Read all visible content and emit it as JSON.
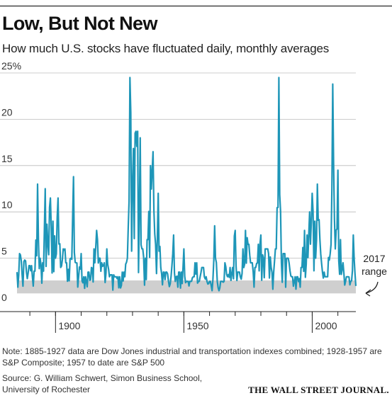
{
  "chart_data": {
    "type": "line",
    "title": "Low, But Not New",
    "subtitle": "How much U.S. stocks have fluctuated daily, monthly averages",
    "x_range": [
      1885,
      2017
    ],
    "ylim": [
      0,
      25
    ],
    "y_ticks": [
      0,
      5,
      10,
      15,
      20,
      25
    ],
    "y_tick_labels": [
      "0",
      "5",
      "10",
      "15",
      "20",
      "25%"
    ],
    "x_ticks": [
      1900,
      1950,
      2000
    ],
    "x_tick_labels": [
      "1900",
      "1950",
      "2000"
    ],
    "grid": "horizontal",
    "series": [
      {
        "color": "#1e96b8",
        "x": [
          1885,
          1886,
          1887,
          1888,
          1889,
          1890,
          1891,
          1892,
          1893,
          1894,
          1895,
          1896,
          1897,
          1898,
          1899,
          1900,
          1901,
          1902,
          1903,
          1904,
          1905,
          1906,
          1907,
          1908,
          1909,
          1910,
          1911,
          1912,
          1913,
          1914,
          1915,
          1916,
          1917,
          1918,
          1919,
          1920,
          1921,
          1922,
          1923,
          1924,
          1925,
          1926,
          1927,
          1928,
          1929,
          1930,
          1931,
          1932,
          1933,
          1934,
          1935,
          1936,
          1937,
          1938,
          1939,
          1940,
          1941,
          1942,
          1943,
          1944,
          1945,
          1946,
          1947,
          1948,
          1949,
          1950,
          1951,
          1952,
          1953,
          1954,
          1955,
          1956,
          1957,
          1958,
          1959,
          1960,
          1961,
          1962,
          1963,
          1964,
          1965,
          1966,
          1967,
          1968,
          1969,
          1970,
          1971,
          1972,
          1973,
          1974,
          1975,
          1976,
          1977,
          1978,
          1979,
          1980,
          1981,
          1982,
          1983,
          1984,
          1985,
          1986,
          1987,
          1988,
          1989,
          1990,
          1991,
          1992,
          1993,
          1994,
          1995,
          1996,
          1997,
          1998,
          1999,
          2000,
          2001,
          2002,
          2003,
          2004,
          2005,
          2006,
          2007,
          2008,
          2009,
          2010,
          2011,
          2012,
          2013,
          2014,
          2015,
          2016,
          2017
        ],
        "values": [
          3.5,
          5.5,
          3.2,
          4.8,
          2.8,
          4.2,
          3.0,
          3.6,
          13.0,
          5.0,
          4.5,
          12.5,
          6.5,
          11.5,
          9.0,
          5.0,
          11.5,
          4.0,
          6.0,
          4.5,
          3.8,
          5.0,
          13.8,
          4.5,
          3.0,
          5.5,
          3.0,
          2.5,
          3.5,
          4.0,
          6.0,
          8.0,
          5.0,
          4.5,
          4.5,
          6.0,
          3.0,
          3.2,
          3.0,
          2.8,
          3.0,
          3.5,
          3.0,
          5.0,
          24.5,
          13.0,
          18.5,
          18.7,
          18.0,
          6.0,
          5.0,
          7.0,
          15.0,
          16.5,
          6.5,
          12.0,
          4.0,
          3.5,
          3.5,
          2.5,
          3.0,
          7.5,
          3.0,
          3.5,
          3.5,
          6.0,
          2.5,
          2.0,
          2.5,
          3.0,
          4.5,
          2.5,
          4.0,
          3.0,
          2.5,
          2.5,
          1.5,
          8.5,
          2.5,
          1.8,
          2.5,
          4.5,
          3.0,
          4.0,
          4.0,
          8.0,
          3.5,
          3.0,
          6.0,
          8.0,
          6.5,
          4.5,
          3.5,
          4.0,
          6.5,
          7.5,
          5.0,
          6.0,
          5.5,
          4.0,
          3.5,
          6.0,
          24.5,
          4.5,
          5.5,
          5.0,
          4.5,
          3.0,
          2.5,
          3.0,
          2.8,
          4.0,
          8.0,
          7.5,
          10.0,
          12.0,
          9.0,
          13.0,
          7.0,
          3.5,
          3.0,
          3.0,
          5.5,
          23.8,
          6.0,
          14.5,
          7.0,
          4.5,
          2.5,
          3.0,
          2.5,
          7.5,
          2.0
        ]
      }
    ],
    "shaded_band": {
      "y_range": [
        1.2,
        2.6
      ],
      "color": "#cfcfcf",
      "label_lines": [
        "2017",
        "range"
      ]
    }
  },
  "note": "Note: 1885-1927 data are Dow Jones industrial and transportation indexes combined; 1928-1957 are S&P Composite; 1957 to date are S&P 500",
  "source": "Source: G. William Schwert, Simon Business School, University of Rochester",
  "logo": "THE WALL STREET JOURNAL.",
  "colors": {
    "line": "#1e96b8",
    "band": "#cfcfcf",
    "grid": "#bbbbbb"
  }
}
